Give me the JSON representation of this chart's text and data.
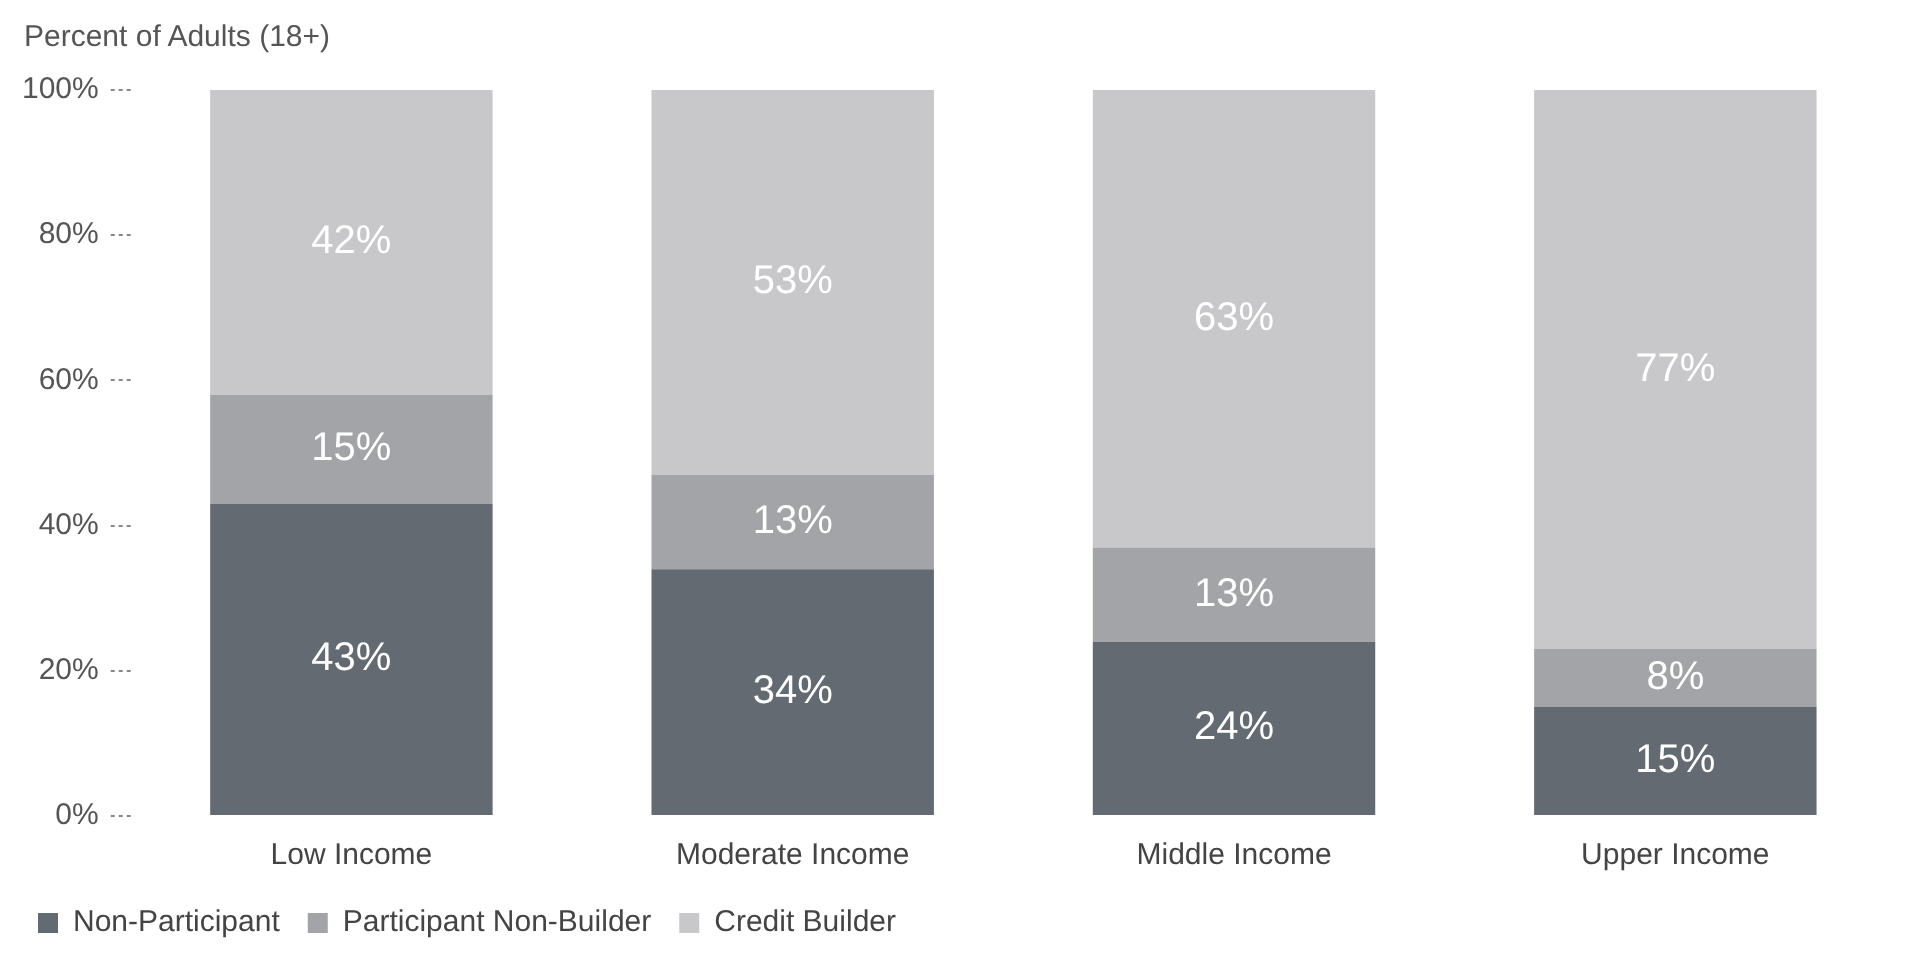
{
  "chart_data": {
    "type": "bar",
    "stacked": true,
    "ylabel": "Percent of Adults (18+)",
    "categories": [
      "Low Income",
      "Moderate Income",
      "Middle Income",
      "Upper Income"
    ],
    "series": [
      {
        "name": "Non-Participant",
        "color": "#646a72",
        "values": [
          43,
          34,
          24,
          15
        ],
        "value_labels": [
          "43%",
          "34%",
          "24%",
          "15%"
        ]
      },
      {
        "name": "Participant Non-Builder",
        "color": "#a3a4a7",
        "values": [
          15,
          13,
          13,
          8
        ],
        "value_labels": [
          "15%",
          "13%",
          "13%",
          "8%"
        ]
      },
      {
        "name": "Credit Builder",
        "color": "#c8c8ca",
        "values": [
          42,
          53,
          63,
          77
        ],
        "value_labels": [
          "42%",
          "53%",
          "63%",
          "77%"
        ]
      }
    ],
    "ylim": [
      0,
      100
    ],
    "yticks": [
      {
        "value": 0,
        "label": "0%"
      },
      {
        "value": 20,
        "label": "20%"
      },
      {
        "value": 40,
        "label": "40%"
      },
      {
        "value": 60,
        "label": "60%"
      },
      {
        "value": 80,
        "label": "80%"
      },
      {
        "value": 100,
        "label": "100%"
      }
    ],
    "grid": false,
    "legend": "bottom left"
  }
}
